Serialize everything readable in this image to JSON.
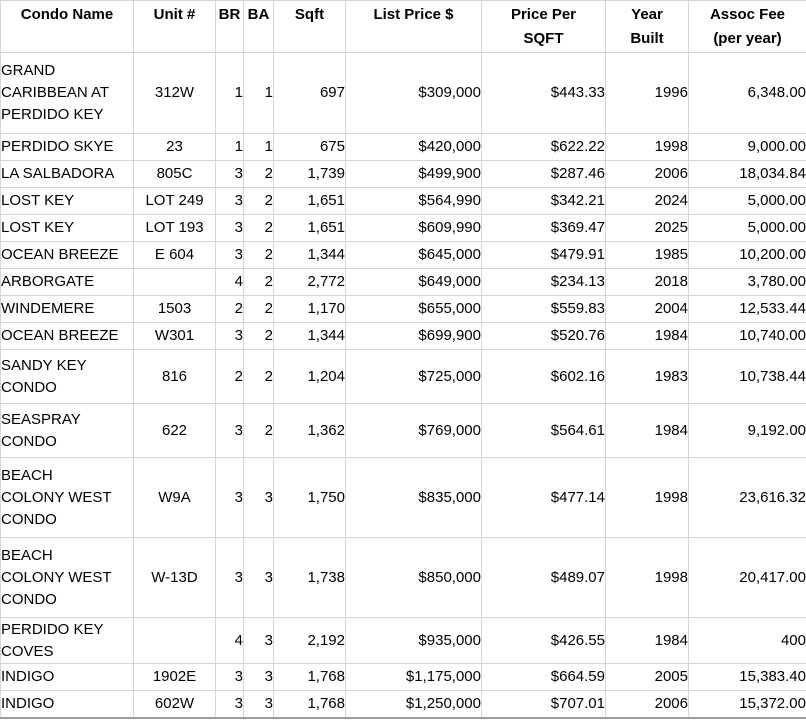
{
  "table": {
    "columns": [
      {
        "key": "condo_name",
        "label": "Condo Name"
      },
      {
        "key": "unit",
        "label": "Unit #"
      },
      {
        "key": "br",
        "label": "BR"
      },
      {
        "key": "ba",
        "label": "BA"
      },
      {
        "key": "sqft",
        "label": "Sqft"
      },
      {
        "key": "list_price",
        "label": "List Price $"
      },
      {
        "key": "price_per_sqft",
        "label": "Price Per\nSQFT"
      },
      {
        "key": "year_built",
        "label": "Year\nBuilt"
      },
      {
        "key": "assoc_fee",
        "label": "Assoc Fee\n(per year)"
      }
    ],
    "rows": [
      {
        "cells": [
          "GRAND\nCARIBBEAN AT\nPERDIDO KEY",
          "312W",
          "1",
          "1",
          "697",
          "$309,000",
          "$443.33",
          "1996",
          "6,348.00"
        ]
      },
      {
        "cells": [
          "PERDIDO SKYE",
          "23",
          "1",
          "1",
          "675",
          "$420,000",
          "$622.22",
          "1998",
          "9,000.00"
        ]
      },
      {
        "cells": [
          "LA SALBADORA",
          "805C",
          "3",
          "2",
          "1,739",
          "$499,900",
          "$287.46",
          "2006",
          "18,034.84"
        ]
      },
      {
        "cells": [
          "LOST KEY",
          "LOT 249",
          "3",
          "2",
          "1,651",
          "$564,990",
          "$342.21",
          "2024",
          "5,000.00"
        ]
      },
      {
        "cells": [
          "LOST KEY",
          "LOT 193",
          "3",
          "2",
          "1,651",
          "$609,990",
          "$369.47",
          "2025",
          "5,000.00"
        ]
      },
      {
        "cells": [
          "OCEAN BREEZE",
          "E 604",
          "3",
          "2",
          "1,344",
          "$645,000",
          "$479.91",
          "1985",
          "10,200.00"
        ]
      },
      {
        "cells": [
          "ARBORGATE",
          "",
          "4",
          "2",
          "2,772",
          "$649,000",
          "$234.13",
          "2018",
          "3,780.00"
        ]
      },
      {
        "cells": [
          "WINDEMERE",
          "1503",
          "2",
          "2",
          "1,170",
          "$655,000",
          "$559.83",
          "2004",
          "12,533.44"
        ]
      },
      {
        "cells": [
          "OCEAN BREEZE",
          "W301",
          "3",
          "2",
          "1,344",
          "$699,900",
          "$520.76",
          "1984",
          "10,740.00"
        ]
      },
      {
        "cells": [
          "SANDY KEY\nCONDO",
          "816",
          "2",
          "2",
          "1,204",
          "$725,000",
          "$602.16",
          "1983",
          "10,738.44"
        ]
      },
      {
        "cells": [
          "SEASPRAY\nCONDO",
          "622",
          "3",
          "2",
          "1,362",
          "$769,000",
          "$564.61",
          "1984",
          "9,192.00"
        ]
      },
      {
        "cells": [
          "BEACH\nCOLONY WEST\nCONDO",
          "W9A",
          "3",
          "3",
          "1,750",
          "$835,000",
          "$477.14",
          "1998",
          "23,616.32"
        ]
      },
      {
        "cells": [
          "BEACH\nCOLONY WEST\nCONDO",
          "W-13D",
          "3",
          "3",
          "1,738",
          "$850,000",
          "$489.07",
          "1998",
          "20,417.00"
        ]
      },
      {
        "cells": [
          "PERDIDO KEY\nCOVES",
          "",
          "4",
          "3",
          "2,192",
          "$935,000",
          "$426.55",
          "1984",
          "400"
        ]
      },
      {
        "cells": [
          "INDIGO",
          "1902E",
          "3",
          "3",
          "1,768",
          "$1,175,000",
          "$664.59",
          "2005",
          "15,383.40"
        ]
      },
      {
        "cells": [
          "INDIGO",
          "602W",
          "3",
          "3",
          "1,768",
          "$1,250,000",
          "$707.01",
          "2006",
          "15,372.00"
        ]
      }
    ]
  },
  "colors": {
    "gridline": "#d6d6d6",
    "outer_bottom_border": "#9c9c9c",
    "text": "#000000",
    "background": "#ffffff"
  }
}
